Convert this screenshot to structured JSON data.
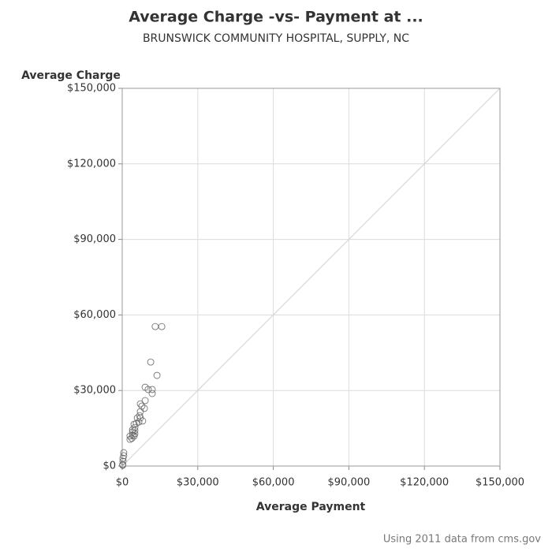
{
  "chart_data": {
    "type": "scatter",
    "title": "Average Charge -vs- Payment at ...",
    "subtitle": "BRUNSWICK COMMUNITY HOSPITAL, SUPPLY, NC",
    "x_label": "Average Payment",
    "y_label": "Average Charge",
    "footnote": "Using 2011 data from cms.gov",
    "xlim": [
      0,
      150000
    ],
    "ylim": [
      0,
      150000
    ],
    "xticks": [
      {
        "value": 0,
        "label": "$0"
      },
      {
        "value": 30000,
        "label": "$30,000"
      },
      {
        "value": 60000,
        "label": "$60,000"
      },
      {
        "value": 90000,
        "label": "$90,000"
      },
      {
        "value": 120000,
        "label": "$120,000"
      },
      {
        "value": 150000,
        "label": "$150,000"
      }
    ],
    "yticks": [
      {
        "value": 0,
        "label": "$0"
      },
      {
        "value": 30000,
        "label": "$30,000"
      },
      {
        "value": 60000,
        "label": "$60,000"
      },
      {
        "value": 90000,
        "label": "$90,000"
      },
      {
        "value": 120000,
        "label": "$120,000"
      },
      {
        "value": 150000,
        "label": "$150,000"
      }
    ],
    "grid": true,
    "color": "#666666",
    "x": [
      200,
      200,
      300,
      300,
      600,
      600,
      13100,
      15700,
      11300,
      13800,
      9100,
      10300,
      11900,
      11900,
      9100,
      8800,
      7200,
      7800,
      7200,
      6900,
      6000,
      7200,
      8100,
      6600,
      5600,
      4700,
      5000,
      4100,
      5000,
      4100,
      5000,
      4100,
      3100,
      4700,
      3800,
      3100
    ],
    "values": [
      300,
      600,
      1900,
      3100,
      4100,
      5300,
      55400,
      55400,
      41300,
      36000,
      31300,
      30400,
      30400,
      28800,
      26000,
      22900,
      24700,
      23800,
      21600,
      20000,
      19100,
      19100,
      17900,
      17500,
      16900,
      16600,
      15300,
      14400,
      14100,
      13500,
      12800,
      12200,
      11900,
      11900,
      11000,
      10600
    ]
  }
}
